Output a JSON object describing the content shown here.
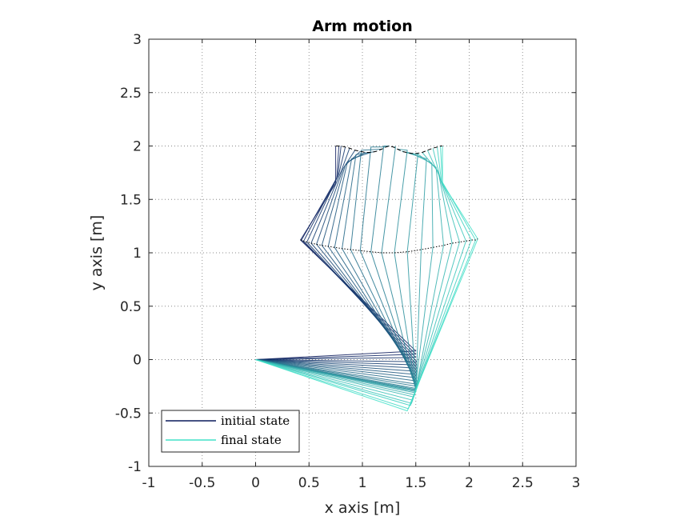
{
  "chart_data": {
    "type": "line",
    "title": "Arm motion",
    "xlabel": "x axis [m]",
    "ylabel": "y axis [m]",
    "xlim": [
      -1,
      3
    ],
    "ylim": [
      -1,
      3
    ],
    "xticks": [
      -1,
      -0.5,
      0,
      0.5,
      1,
      1.5,
      2,
      2.5,
      3
    ],
    "yticks": [
      -1,
      -0.5,
      0,
      0.5,
      1,
      1.5,
      2,
      2.5,
      3
    ],
    "xtick_labels": [
      "-1",
      "-0.5",
      "0",
      "0.5",
      "1",
      "1.5",
      "2",
      "2.5",
      "3"
    ],
    "ytick_labels": [
      "-1",
      "-0.5",
      "0",
      "0.5",
      "1",
      "1.5",
      "2",
      "2.5",
      "3"
    ],
    "grid": true,
    "legend": {
      "placement": "bottom-left",
      "entries": [
        {
          "label": "initial state",
          "color": "#0a1a5c"
        },
        {
          "label": "final state",
          "color": "#40e0c8"
        }
      ]
    },
    "colors": {
      "initial": "#0a1a5c",
      "final": "#40e0c8",
      "axes": "#262626"
    },
    "base": [
      0,
      0
    ],
    "series": [
      {
        "joints": [
          [
            0,
            0
          ],
          [
            1.5,
            0.08
          ],
          [
            0.42,
            1.12
          ],
          [
            0.75,
            1.65
          ],
          [
            0.75,
            2.0
          ]
        ]
      },
      {
        "joints": [
          [
            0,
            0
          ],
          [
            1.5,
            0.05
          ],
          [
            0.43,
            1.12
          ],
          [
            0.76,
            1.7
          ],
          [
            0.78,
            2.0
          ]
        ]
      },
      {
        "joints": [
          [
            0,
            0
          ],
          [
            1.5,
            0.02
          ],
          [
            0.45,
            1.11
          ],
          [
            0.77,
            1.72
          ],
          [
            0.8,
            2.0
          ]
        ]
      },
      {
        "joints": [
          [
            0,
            0
          ],
          [
            1.51,
            -0.02
          ],
          [
            0.48,
            1.1
          ],
          [
            0.78,
            1.74
          ],
          [
            0.84,
            1.99
          ]
        ]
      },
      {
        "joints": [
          [
            0,
            0
          ],
          [
            1.51,
            -0.05
          ],
          [
            0.52,
            1.09
          ],
          [
            0.8,
            1.76
          ],
          [
            0.88,
            1.98
          ]
        ]
      },
      {
        "joints": [
          [
            0,
            0
          ],
          [
            1.51,
            -0.08
          ],
          [
            0.57,
            1.08
          ],
          [
            0.82,
            1.79
          ],
          [
            0.93,
            1.96
          ]
        ]
      },
      {
        "joints": [
          [
            0,
            0
          ],
          [
            1.51,
            -0.11
          ],
          [
            0.62,
            1.07
          ],
          [
            0.84,
            1.82
          ],
          [
            0.98,
            1.95
          ]
        ]
      },
      {
        "joints": [
          [
            0,
            0
          ],
          [
            1.51,
            -0.14
          ],
          [
            0.68,
            1.06
          ],
          [
            0.86,
            1.85
          ],
          [
            1.03,
            1.94
          ]
        ]
      },
      {
        "joints": [
          [
            0,
            0
          ],
          [
            1.51,
            -0.17
          ],
          [
            0.74,
            1.05
          ],
          [
            0.9,
            1.88
          ],
          [
            1.08,
            1.94
          ]
        ]
      },
      {
        "joints": [
          [
            0,
            0
          ],
          [
            1.51,
            -0.2
          ],
          [
            0.81,
            1.04
          ],
          [
            0.94,
            1.92
          ],
          [
            1.13,
            1.95
          ]
        ]
      },
      {
        "joints": [
          [
            0,
            0
          ],
          [
            1.51,
            -0.23
          ],
          [
            0.89,
            1.03
          ],
          [
            0.99,
            1.96
          ],
          [
            1.18,
            1.97
          ]
        ]
      },
      {
        "joints": [
          [
            0,
            0
          ],
          [
            1.51,
            -0.25
          ],
          [
            0.98,
            1.02
          ],
          [
            1.08,
            1.99
          ],
          [
            1.22,
            1.99
          ]
        ]
      },
      {
        "joints": [
          [
            0,
            0
          ],
          [
            1.5,
            -0.27
          ],
          [
            1.08,
            1.01
          ],
          [
            1.2,
            2.0
          ],
          [
            1.25,
            2.0
          ]
        ]
      },
      {
        "joints": [
          [
            0,
            0
          ],
          [
            1.5,
            -0.28
          ],
          [
            1.18,
            1.0
          ],
          [
            1.31,
            1.99
          ],
          [
            1.29,
            1.99
          ]
        ]
      },
      {
        "joints": [
          [
            0,
            0
          ],
          [
            1.5,
            -0.29
          ],
          [
            1.3,
            1.0
          ],
          [
            1.42,
            1.96
          ],
          [
            1.33,
            1.97
          ]
        ]
      },
      {
        "joints": [
          [
            0,
            0
          ],
          [
            1.5,
            -0.29
          ],
          [
            1.42,
            1.01
          ],
          [
            1.52,
            1.92
          ],
          [
            1.37,
            1.95
          ]
        ]
      },
      {
        "joints": [
          [
            0,
            0
          ],
          [
            1.5,
            -0.3
          ],
          [
            1.55,
            1.03
          ],
          [
            1.6,
            1.88
          ],
          [
            1.41,
            1.94
          ]
        ]
      },
      {
        "joints": [
          [
            0,
            0
          ],
          [
            1.49,
            -0.31
          ],
          [
            1.66,
            1.05
          ],
          [
            1.65,
            1.84
          ],
          [
            1.46,
            1.93
          ]
        ]
      },
      {
        "joints": [
          [
            0,
            0
          ],
          [
            1.49,
            -0.33
          ],
          [
            1.76,
            1.07
          ],
          [
            1.69,
            1.8
          ],
          [
            1.51,
            1.93
          ]
        ]
      },
      {
        "joints": [
          [
            0,
            0
          ],
          [
            1.48,
            -0.35
          ],
          [
            1.84,
            1.09
          ],
          [
            1.71,
            1.76
          ],
          [
            1.56,
            1.94
          ]
        ]
      },
      {
        "joints": [
          [
            0,
            0
          ],
          [
            1.47,
            -0.38
          ],
          [
            1.91,
            1.1
          ],
          [
            1.72,
            1.72
          ],
          [
            1.61,
            1.96
          ]
        ]
      },
      {
        "joints": [
          [
            0,
            0
          ],
          [
            1.46,
            -0.41
          ],
          [
            1.97,
            1.11
          ],
          [
            1.73,
            1.69
          ],
          [
            1.66,
            1.98
          ]
        ]
      },
      {
        "joints": [
          [
            0,
            0
          ],
          [
            1.45,
            -0.43
          ],
          [
            2.02,
            1.12
          ],
          [
            1.74,
            1.67
          ],
          [
            1.7,
            1.99
          ]
        ]
      },
      {
        "joints": [
          [
            0,
            0
          ],
          [
            1.43,
            -0.46
          ],
          [
            2.06,
            1.12
          ],
          [
            1.75,
            1.66
          ],
          [
            1.73,
            2.0
          ]
        ]
      },
      {
        "joints": [
          [
            0,
            0
          ],
          [
            1.42,
            -0.48
          ],
          [
            2.08,
            1.13
          ],
          [
            1.75,
            1.65
          ],
          [
            1.75,
            2.0
          ]
        ]
      }
    ]
  }
}
